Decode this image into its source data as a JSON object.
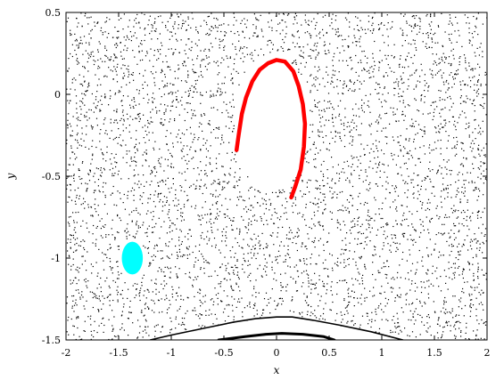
{
  "chart_data": {
    "type": "scatter",
    "title": "",
    "xlabel": "x",
    "ylabel": "y",
    "xlim": [
      -2,
      2
    ],
    "ylim": [
      -1.5,
      0.5
    ],
    "x_ticks": [
      -2,
      -1.5,
      -1,
      -0.5,
      0,
      0.5,
      1,
      1.5,
      2
    ],
    "x_tick_labels": [
      "-2",
      "-1.5",
      "-1",
      "-0.5",
      "0",
      "0.5",
      "1",
      "1.5",
      "2"
    ],
    "y_ticks": [
      -1.5,
      -1,
      -0.5,
      0,
      0.5
    ],
    "y_tick_labels": [
      "-1.5",
      "-1",
      "-0.5",
      "0",
      "0.5"
    ],
    "grid": false,
    "legend": "none",
    "background_points": {
      "color": "#000000",
      "distribution": "uniform chaotic sea over the plot area, excluding the closed curves"
    },
    "series": [
      {
        "shape": "crescent",
        "color": "#ff0000",
        "points": [
          [
            -0.38,
            -0.34
          ],
          [
            -0.36,
            -0.25
          ],
          [
            -0.33,
            -0.12
          ],
          [
            -0.29,
            -0.02
          ],
          [
            -0.23,
            0.08
          ],
          [
            -0.16,
            0.15
          ],
          [
            -0.08,
            0.19
          ],
          [
            0.0,
            0.21
          ],
          [
            0.08,
            0.2
          ],
          [
            0.16,
            0.14
          ],
          [
            0.21,
            0.05
          ],
          [
            0.25,
            -0.06
          ],
          [
            0.27,
            -0.18
          ],
          [
            0.26,
            -0.32
          ],
          [
            0.23,
            -0.46
          ],
          [
            0.18,
            -0.56
          ],
          [
            0.14,
            -0.63
          ]
        ]
      },
      {
        "shape": "ellipse",
        "color": "#00ffff",
        "center": [
          -1.37,
          -1.0
        ],
        "radius_x": 0.1,
        "radius_y": 0.1
      },
      {
        "shape": "arc",
        "color": "#000000",
        "points": [
          [
            -1.2,
            -1.5
          ],
          [
            -1.0,
            -1.47
          ],
          [
            -0.7,
            -1.43
          ],
          [
            -0.4,
            -1.39
          ],
          [
            -0.2,
            -1.37
          ],
          [
            0.0,
            -1.36
          ],
          [
            0.15,
            -1.36
          ],
          [
            0.35,
            -1.38
          ],
          [
            0.6,
            -1.41
          ],
          [
            0.9,
            -1.45
          ],
          [
            1.2,
            -1.5
          ]
        ]
      },
      {
        "shape": "arc",
        "color": "#000000",
        "points": [
          [
            -0.55,
            -1.5
          ],
          [
            -0.3,
            -1.48
          ],
          [
            -0.1,
            -1.465
          ],
          [
            0.05,
            -1.46
          ],
          [
            0.25,
            -1.465
          ],
          [
            0.45,
            -1.48
          ],
          [
            0.55,
            -1.5
          ]
        ]
      }
    ]
  }
}
